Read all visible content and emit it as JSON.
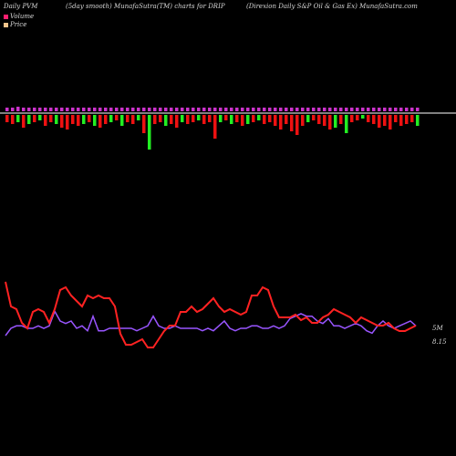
{
  "header": {
    "left": "Daily PVM",
    "middle": "(5day smooth) MunafaSutra(TM) charts for DRIP",
    "right": "(Direxion Daily S&P Oil & Gas Ex) MunafaSutra.com"
  },
  "legend": {
    "volume_label": "Volume",
    "price_label": "Price",
    "volume_color": "#ff1f6f",
    "price_color": "#f4c48c"
  },
  "colors": {
    "background": "#000000",
    "up_bar": "#22ee22",
    "down_bar": "#ee1111",
    "top_bar": "#cc33cc",
    "price_line": "#ff2222",
    "volume_line": "#9955ff",
    "baseline": "#ffffff"
  },
  "chart_data": {
    "type": "line",
    "volume_line_label": "5M",
    "price_label": "8.15",
    "bars": {
      "top": [
        4,
        4,
        5,
        4,
        4,
        4,
        4,
        4,
        4,
        4,
        4,
        4,
        4,
        4,
        4,
        4,
        4,
        4,
        4,
        4,
        4,
        4,
        4,
        4,
        4,
        4,
        4,
        4,
        4,
        4,
        4,
        4,
        4,
        4,
        4,
        4,
        4,
        4,
        4,
        4,
        4,
        4,
        4,
        4,
        4,
        4,
        4,
        4,
        4,
        4,
        4,
        4,
        4,
        4,
        4,
        4,
        4,
        4,
        4,
        4,
        4,
        4,
        4,
        4,
        4,
        4,
        4,
        4,
        4,
        4,
        4,
        4,
        4,
        4,
        4,
        4
      ],
      "bottom": [
        -8,
        -10,
        -8,
        -14,
        -10,
        -8,
        -6,
        -12,
        -8,
        -10,
        -14,
        -16,
        -10,
        -12,
        -10,
        -8,
        -12,
        -14,
        -10,
        -8,
        -6,
        -12,
        -8,
        -10,
        -6,
        -20,
        -38,
        -10,
        -8,
        -12,
        -10,
        -14,
        -8,
        -10,
        -8,
        -6,
        -10,
        -8,
        -26,
        -8,
        -6,
        -10,
        -8,
        -12,
        -10,
        -8,
        -6,
        -10,
        -8,
        -12,
        -16,
        -10,
        -18,
        -22,
        -12,
        -8,
        -6,
        -10,
        -12,
        -16,
        -14,
        -10,
        -20,
        -8,
        -6,
        -4,
        -8,
        -10,
        -14,
        -12,
        -16,
        -8,
        -12,
        -10,
        -8,
        -12
      ],
      "colors": [
        "d",
        "d",
        "u",
        "d",
        "u",
        "d",
        "u",
        "d",
        "d",
        "u",
        "d",
        "d",
        "d",
        "d",
        "u",
        "d",
        "u",
        "d",
        "d",
        "u",
        "d",
        "u",
        "d",
        "d",
        "u",
        "d",
        "u",
        "d",
        "d",
        "u",
        "d",
        "d",
        "u",
        "d",
        "d",
        "u",
        "d",
        "d",
        "d",
        "u",
        "d",
        "u",
        "d",
        "d",
        "u",
        "d",
        "u",
        "d",
        "d",
        "d",
        "d",
        "d",
        "d",
        "d",
        "d",
        "u",
        "d",
        "d",
        "d",
        "d",
        "u",
        "d",
        "u",
        "d",
        "d",
        "u",
        "d",
        "d",
        "d",
        "d",
        "d",
        "d",
        "d",
        "d",
        "d",
        "u"
      ]
    },
    "price": [
      9.1,
      8.2,
      8.1,
      7.6,
      7.4,
      8.0,
      8.1,
      8.0,
      7.6,
      8.1,
      8.8,
      8.9,
      8.6,
      8.4,
      8.2,
      8.6,
      8.5,
      8.6,
      8.5,
      8.5,
      8.2,
      7.2,
      6.8,
      6.8,
      6.9,
      7.0,
      6.7,
      6.7,
      7.0,
      7.3,
      7.5,
      7.5,
      8.0,
      8.0,
      8.2,
      8.0,
      8.1,
      8.3,
      8.5,
      8.2,
      8.0,
      8.1,
      8.0,
      7.9,
      8.0,
      8.6,
      8.6,
      8.9,
      8.8,
      8.2,
      7.8,
      7.8,
      7.8,
      7.9,
      7.7,
      7.8,
      7.6,
      7.6,
      7.8,
      7.9,
      8.1,
      8.0,
      7.9,
      7.8,
      7.6,
      7.8,
      7.7,
      7.6,
      7.5,
      7.5,
      7.6,
      7.4,
      7.3,
      7.3,
      7.4,
      7.5
    ],
    "volume": [
      5.2,
      5.5,
      5.6,
      5.6,
      5.5,
      5.5,
      5.6,
      5.5,
      5.6,
      6.2,
      5.8,
      5.7,
      5.8,
      5.5,
      5.6,
      5.4,
      6.0,
      5.4,
      5.4,
      5.5,
      5.5,
      5.5,
      5.5,
      5.5,
      5.4,
      5.5,
      5.6,
      6.0,
      5.6,
      5.5,
      5.5,
      5.6,
      5.5,
      5.5,
      5.5,
      5.5,
      5.4,
      5.5,
      5.4,
      5.6,
      5.8,
      5.5,
      5.4,
      5.5,
      5.5,
      5.6,
      5.6,
      5.5,
      5.5,
      5.6,
      5.5,
      5.6,
      5.9,
      6.0,
      6.1,
      6.0,
      6.0,
      5.8,
      5.7,
      5.9,
      5.6,
      5.6,
      5.5,
      5.6,
      5.7,
      5.6,
      5.4,
      5.3,
      5.6,
      5.8,
      5.6,
      5.5,
      5.6,
      5.7,
      5.8,
      5.6
    ],
    "ylim_price": [
      6.4,
      9.4
    ],
    "ylim_volume": [
      4.0,
      7.0
    ],
    "legend_position": "top-left",
    "grid": false
  }
}
